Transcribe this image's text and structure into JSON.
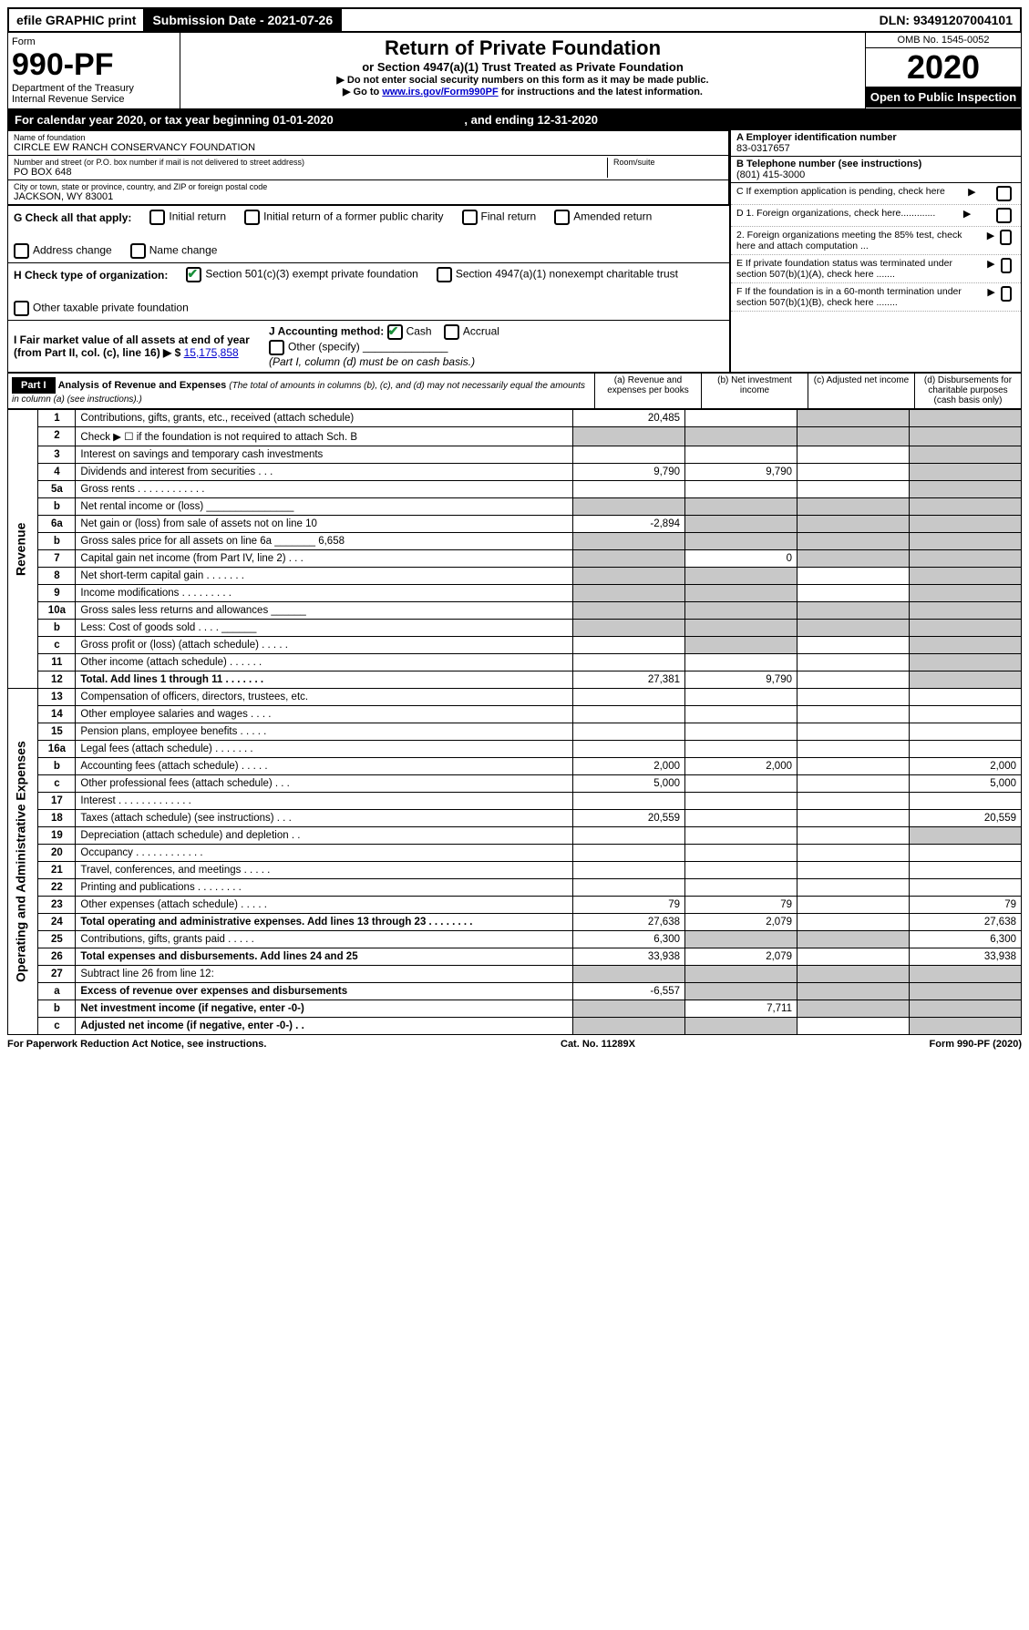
{
  "top_bar": {
    "efile": "efile GRAPHIC print",
    "submission": "Submission Date - 2021-07-26",
    "dln": "DLN: 93491207004101"
  },
  "header": {
    "form_word": "Form",
    "form_no": "990-PF",
    "dept": "Department of the Treasury",
    "irs": "Internal Revenue Service",
    "title": "Return of Private Foundation",
    "subtitle": "or Section 4947(a)(1) Trust Treated as Private Foundation",
    "instr1": "▶ Do not enter social security numbers on this form as it may be made public.",
    "instr2_pre": "▶ Go to ",
    "instr2_link": "www.irs.gov/Form990PF",
    "instr2_post": " for instructions and the latest information.",
    "omb": "OMB No. 1545-0052",
    "year": "2020",
    "open": "Open to Public Inspection"
  },
  "cal_year": {
    "text_pre": "For calendar year 2020, or tax year beginning ",
    "begin": "01-01-2020",
    "text_mid": " , and ending ",
    "end": "12-31-2020"
  },
  "info": {
    "name_label": "Name of foundation",
    "name": "CIRCLE EW RANCH CONSERVANCY FOUNDATION",
    "addr_label": "Number and street (or P.O. box number if mail is not delivered to street address)",
    "room_label": "Room/suite",
    "addr": "PO BOX 648",
    "city_label": "City or town, state or province, country, and ZIP or foreign postal code",
    "city": "JACKSON, WY  83001",
    "a_label": "A Employer identification number",
    "a_val": "83-0317657",
    "b_label": "B Telephone number (see instructions)",
    "b_val": "(801) 415-3000",
    "c_label": "C If exemption application is pending, check here",
    "d1": "D 1. Foreign organizations, check here.............",
    "d2": "2. Foreign organizations meeting the 85% test, check here and attach computation ...",
    "e": "E  If private foundation status was terminated under section 507(b)(1)(A), check here .......",
    "f": "F  If the foundation is in a 60-month termination under section 507(b)(1)(B), check here ........"
  },
  "g": {
    "label": "G Check all that apply:",
    "opts": [
      "Initial return",
      "Initial return of a former public charity",
      "Final return",
      "Amended return",
      "Address change",
      "Name change"
    ]
  },
  "h": {
    "label": "H Check type of organization:",
    "opt1": "Section 501(c)(3) exempt private foundation",
    "opt2": "Section 4947(a)(1) nonexempt charitable trust",
    "opt3": "Other taxable private foundation"
  },
  "i": {
    "label": "I Fair market value of all assets at end of year (from Part II, col. (c), line 16) ▶ $",
    "val": "15,175,858",
    "j_label": "J Accounting method:",
    "j_cash": "Cash",
    "j_accrual": "Accrual",
    "j_other": "Other (specify)",
    "j_note": "(Part I, column (d) must be on cash basis.)"
  },
  "part1": {
    "tag": "Part I",
    "title": "Analysis of Revenue and Expenses",
    "title_note": "(The total of amounts in columns (b), (c), and (d) may not necessarily equal the amounts in column (a) (see instructions).)",
    "col_a": "(a)   Revenue and expenses per books",
    "col_b": "(b)  Net investment income",
    "col_c": "(c)  Adjusted net income",
    "col_d": "(d)  Disbursements for charitable purposes (cash basis only)",
    "side_rev": "Revenue",
    "side_exp": "Operating and Administrative Expenses"
  },
  "rows": [
    {
      "no": "1",
      "desc": "Contributions, gifts, grants, etc., received (attach schedule)",
      "a": "20,485",
      "b": "",
      "c": "",
      "d": "",
      "shade_c": true,
      "shade_d": true
    },
    {
      "no": "2",
      "desc": "Check ▶ ☐ if the foundation is not required to attach Sch. B",
      "a": "",
      "b": "",
      "c": "",
      "d": "",
      "shade_a": true,
      "shade_b": true,
      "shade_c": true,
      "shade_d": true
    },
    {
      "no": "3",
      "desc": "Interest on savings and temporary cash investments",
      "a": "",
      "b": "",
      "c": "",
      "d": "",
      "shade_d": true
    },
    {
      "no": "4",
      "desc": "Dividends and interest from securities   .   .   .",
      "a": "9,790",
      "b": "9,790",
      "c": "",
      "d": "",
      "shade_d": true
    },
    {
      "no": "5a",
      "desc": "Gross rents   .   .   .   .   .   .   .   .   .   .   .   .",
      "a": "",
      "b": "",
      "c": "",
      "d": "",
      "shade_d": true
    },
    {
      "no": "b",
      "desc": "Net rental income or (loss)  _______________",
      "a": "",
      "b": "",
      "c": "",
      "d": "",
      "shade_a": true,
      "shade_b": true,
      "shade_c": true,
      "shade_d": true
    },
    {
      "no": "6a",
      "desc": "Net gain or (loss) from sale of assets not on line 10",
      "a": "-2,894",
      "b": "",
      "c": "",
      "d": "",
      "shade_b": true,
      "shade_c": true,
      "shade_d": true
    },
    {
      "no": "b",
      "desc": "Gross sales price for all assets on line 6a  _______ 6,658",
      "a": "",
      "b": "",
      "c": "",
      "d": "",
      "shade_a": true,
      "shade_b": true,
      "shade_c": true,
      "shade_d": true
    },
    {
      "no": "7",
      "desc": "Capital gain net income (from Part IV, line 2)   .   .   .",
      "a": "",
      "b": "0",
      "c": "",
      "d": "",
      "shade_a": true,
      "shade_c": true,
      "shade_d": true
    },
    {
      "no": "8",
      "desc": "Net short-term capital gain   .   .   .   .   .   .   .",
      "a": "",
      "b": "",
      "c": "",
      "d": "",
      "shade_a": true,
      "shade_b": true,
      "shade_d": true
    },
    {
      "no": "9",
      "desc": "Income modifications   .   .   .   .   .   .   .   .   .",
      "a": "",
      "b": "",
      "c": "",
      "d": "",
      "shade_a": true,
      "shade_b": true,
      "shade_d": true
    },
    {
      "no": "10a",
      "desc": "Gross sales less returns and allowances  ______",
      "a": "",
      "b": "",
      "c": "",
      "d": "",
      "shade_a": true,
      "shade_b": true,
      "shade_c": true,
      "shade_d": true
    },
    {
      "no": "b",
      "desc": "Less: Cost of goods sold   .   .   .   .   ______",
      "a": "",
      "b": "",
      "c": "",
      "d": "",
      "shade_a": true,
      "shade_b": true,
      "shade_c": true,
      "shade_d": true
    },
    {
      "no": "c",
      "desc": "Gross profit or (loss) (attach schedule)   .   .   .   .   .",
      "a": "",
      "b": "",
      "c": "",
      "d": "",
      "shade_b": true,
      "shade_d": true
    },
    {
      "no": "11",
      "desc": "Other income (attach schedule)   .   .   .   .   .   .",
      "a": "",
      "b": "",
      "c": "",
      "d": "",
      "shade_d": true
    },
    {
      "no": "12",
      "desc": "Total. Add lines 1 through 11   .   .   .   .   .   .   .",
      "a": "27,381",
      "b": "9,790",
      "c": "",
      "d": "",
      "bold": true,
      "shade_d": true
    },
    {
      "no": "13",
      "desc": "Compensation of officers, directors, trustees, etc.",
      "a": "",
      "b": "",
      "c": "",
      "d": ""
    },
    {
      "no": "14",
      "desc": "Other employee salaries and wages   .   .   .   .",
      "a": "",
      "b": "",
      "c": "",
      "d": ""
    },
    {
      "no": "15",
      "desc": "Pension plans, employee benefits   .   .   .   .   .",
      "a": "",
      "b": "",
      "c": "",
      "d": ""
    },
    {
      "no": "16a",
      "desc": "Legal fees (attach schedule)   .   .   .   .   .   .   .",
      "a": "",
      "b": "",
      "c": "",
      "d": ""
    },
    {
      "no": "b",
      "desc": "Accounting fees (attach schedule)   .   .   .   .   .",
      "a": "2,000",
      "b": "2,000",
      "c": "",
      "d": "2,000"
    },
    {
      "no": "c",
      "desc": "Other professional fees (attach schedule)   .   .   .",
      "a": "5,000",
      "b": "",
      "c": "",
      "d": "5,000"
    },
    {
      "no": "17",
      "desc": "Interest   .   .   .   .   .   .   .   .   .   .   .   .   .",
      "a": "",
      "b": "",
      "c": "",
      "d": ""
    },
    {
      "no": "18",
      "desc": "Taxes (attach schedule) (see instructions)   .   .   .",
      "a": "20,559",
      "b": "",
      "c": "",
      "d": "20,559"
    },
    {
      "no": "19",
      "desc": "Depreciation (attach schedule) and depletion   .   .",
      "a": "",
      "b": "",
      "c": "",
      "d": "",
      "shade_d": true
    },
    {
      "no": "20",
      "desc": "Occupancy   .   .   .   .   .   .   .   .   .   .   .   .",
      "a": "",
      "b": "",
      "c": "",
      "d": ""
    },
    {
      "no": "21",
      "desc": "Travel, conferences, and meetings   .   .   .   .   .",
      "a": "",
      "b": "",
      "c": "",
      "d": ""
    },
    {
      "no": "22",
      "desc": "Printing and publications   .   .   .   .   .   .   .   .",
      "a": "",
      "b": "",
      "c": "",
      "d": ""
    },
    {
      "no": "23",
      "desc": "Other expenses (attach schedule)   .   .   .   .   .",
      "a": "79",
      "b": "79",
      "c": "",
      "d": "79"
    },
    {
      "no": "24",
      "desc": "Total operating and administrative expenses. Add lines 13 through 23   .   .   .   .   .   .   .   .",
      "a": "27,638",
      "b": "2,079",
      "c": "",
      "d": "27,638",
      "bold": true
    },
    {
      "no": "25",
      "desc": "Contributions, gifts, grants paid   .   .   .   .   .",
      "a": "6,300",
      "b": "",
      "c": "",
      "d": "6,300",
      "shade_b": true,
      "shade_c": true
    },
    {
      "no": "26",
      "desc": "Total expenses and disbursements. Add lines 24 and 25",
      "a": "33,938",
      "b": "2,079",
      "c": "",
      "d": "33,938",
      "bold": true
    },
    {
      "no": "27",
      "desc": "Subtract line 26 from line 12:",
      "a": "",
      "b": "",
      "c": "",
      "d": "",
      "shade_a": true,
      "shade_b": true,
      "shade_c": true,
      "shade_d": true
    },
    {
      "no": "a",
      "desc": "Excess of revenue over expenses and disbursements",
      "a": "-6,557",
      "b": "",
      "c": "",
      "d": "",
      "bold": true,
      "shade_b": true,
      "shade_c": true,
      "shade_d": true
    },
    {
      "no": "b",
      "desc": "Net investment income (if negative, enter -0-)",
      "a": "",
      "b": "7,711",
      "c": "",
      "d": "",
      "bold": true,
      "shade_a": true,
      "shade_c": true,
      "shade_d": true
    },
    {
      "no": "c",
      "desc": "Adjusted net income (if negative, enter -0-)   .   .",
      "a": "",
      "b": "",
      "c": "",
      "d": "",
      "bold": true,
      "shade_a": true,
      "shade_b": true,
      "shade_d": true
    }
  ],
  "footer": {
    "left": "For Paperwork Reduction Act Notice, see instructions.",
    "mid": "Cat. No. 11289X",
    "right": "Form 990-PF (2020)"
  },
  "style": {
    "checked_color": "#1a8f3a",
    "link_color": "#0000cc",
    "shade_color": "#c8c8c8"
  }
}
